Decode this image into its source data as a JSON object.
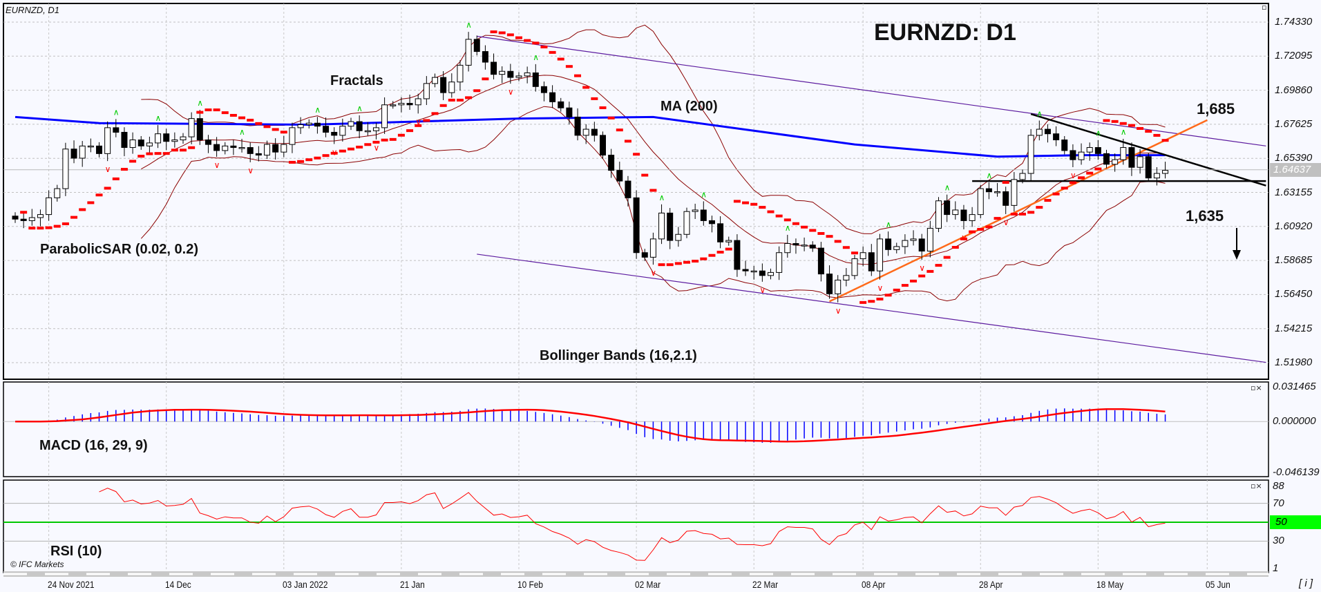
{
  "header": {
    "symbol_label": "EURNZD, D1",
    "big_title": "EURNZD: D1",
    "copyright": "© IFC Markets",
    "info_button": "[ i ]"
  },
  "annotations_text": {
    "parabolic_sar": "ParabolicSAR (0.02, 0.2)",
    "fractals": "Fractals",
    "ma": "MA (200)",
    "bollinger": "Bollinger Bands (16,2.1)",
    "macd": "MACD (16, 29, 9)",
    "rsi": "RSI (10)",
    "level_high": "1,685",
    "level_low": "1,635"
  },
  "price_axis": {
    "ticks": [
      "1.74330",
      "1.72095",
      "1.69860",
      "1.67625",
      "1.65390",
      "1.63155",
      "1.60920",
      "1.58685",
      "1.56450",
      "1.54215",
      "1.51980"
    ],
    "current_price": "1.64637"
  },
  "macd_axis": {
    "ticks": [
      "0.031465",
      "0.000000",
      "-0.046139"
    ]
  },
  "rsi_axis": {
    "ticks": [
      "88",
      "70",
      "50",
      "30",
      "1"
    ]
  },
  "time_axis": {
    "ticks": [
      {
        "label": "24 Nov 2021",
        "date": "2021-11-24"
      },
      {
        "label": "14 Dec",
        "date": "2021-12-14"
      },
      {
        "label": "03 Jan 2022",
        "date": "2022-01-03"
      },
      {
        "label": "21 Jan",
        "date": "2022-01-21"
      },
      {
        "label": "10 Feb",
        "date": "2022-02-10"
      },
      {
        "label": "02 Mar",
        "date": "2022-03-02"
      },
      {
        "label": "22 Mar",
        "date": "2022-03-22"
      },
      {
        "label": "08 Apr",
        "date": "2022-04-08"
      },
      {
        "label": "28 Apr",
        "date": "2022-04-28"
      },
      {
        "label": "18 May",
        "date": "2022-05-18"
      },
      {
        "label": "05 Jun",
        "date": "2022-06-06"
      }
    ]
  },
  "colors": {
    "bull": "#ffffff",
    "bear": "#000000",
    "ma": "#0000ff",
    "bollinger": "#8b0000",
    "sar": "#ff0000",
    "fractal_up": "#00cc00",
    "fractal_down": "#ff0000",
    "channel": "#5b1a9e",
    "support": "#ff6a1a",
    "resistance": "#000000",
    "macd_hist": "#0000ff",
    "macd_signal": "#ff0000",
    "rsi": "#ff0000",
    "rsi_mid": "#00c800"
  },
  "chart_data": {
    "type": "candlestick",
    "symbol": "EURNZD",
    "timeframe": "D1",
    "ylim": [
      1.5198,
      1.7433
    ],
    "trading_days": {
      "2021-11": [
        18,
        19,
        22,
        23,
        24,
        25,
        26,
        29,
        30
      ],
      "2021-12": [
        1,
        2,
        3,
        6,
        7,
        8,
        9,
        10,
        13,
        14,
        15,
        16,
        17,
        20,
        21,
        22,
        23,
        24,
        27,
        28,
        29,
        30,
        31
      ],
      "2022-01": [
        3,
        4,
        5,
        6,
        7,
        10,
        11,
        12,
        13,
        14,
        17,
        18,
        19,
        20,
        21,
        24,
        25,
        26,
        27,
        28,
        31
      ],
      "2022-02": [
        1,
        2,
        3,
        4,
        7,
        8,
        9,
        10,
        11,
        14,
        15,
        16,
        17,
        18,
        21,
        22,
        23,
        24,
        25,
        28
      ],
      "2022-03": [
        1,
        2,
        3,
        4,
        7,
        8,
        9,
        10,
        11,
        14,
        15,
        16,
        17,
        18,
        21,
        22,
        23,
        24,
        25,
        28,
        29,
        30,
        31
      ],
      "2022-04": [
        1,
        4,
        5,
        6,
        7,
        8,
        11,
        12,
        13,
        14,
        15,
        18,
        19,
        20,
        21,
        22,
        25,
        26,
        27,
        28,
        29
      ],
      "2022-05": [
        2,
        3,
        4,
        5,
        6,
        9,
        10,
        11,
        12,
        13,
        16,
        17,
        18,
        19,
        20,
        23,
        24,
        25,
        26,
        27,
        30
      ]
    },
    "first_open": 1.616,
    "close": [
      1.614,
      1.613,
      1.615,
      1.617,
      1.628,
      1.634,
      1.66,
      1.654,
      1.662,
      1.662,
      1.657,
      1.674,
      1.671,
      1.661,
      1.666,
      1.662,
      1.664,
      1.67,
      1.665,
      1.666,
      1.668,
      1.68,
      1.666,
      1.663,
      1.659,
      1.662,
      1.661,
      1.661,
      1.657,
      1.656,
      1.663,
      1.658,
      1.663,
      1.674,
      1.676,
      1.677,
      1.675,
      1.671,
      1.669,
      1.675,
      1.678,
      1.672,
      1.672,
      1.674,
      1.689,
      1.689,
      1.69,
      1.689,
      1.693,
      1.703,
      1.707,
      1.697,
      1.704,
      1.715,
      1.732,
      1.724,
      1.717,
      1.709,
      1.711,
      1.707,
      1.708,
      1.71,
      1.701,
      1.697,
      1.691,
      1.687,
      1.681,
      1.669,
      1.673,
      1.669,
      1.656,
      1.646,
      1.639,
      1.628,
      1.592,
      1.589,
      1.601,
      1.618,
      1.6,
      1.604,
      1.619,
      1.62,
      1.613,
      1.611,
      1.599,
      1.6,
      1.581,
      1.58,
      1.58,
      1.577,
      1.579,
      1.592,
      1.598,
      1.597,
      1.597,
      1.595,
      1.578,
      1.565,
      1.574,
      1.577,
      1.588,
      1.592,
      1.58,
      1.601,
      1.594,
      1.596,
      1.6,
      1.601,
      1.593,
      1.608,
      1.626,
      1.617,
      1.62,
      1.613,
      1.617,
      1.634,
      1.632,
      1.632,
      1.623,
      1.64,
      1.644,
      1.669,
      1.673,
      1.67,
      1.666,
      1.659,
      1.653,
      1.658,
      1.661,
      1.657,
      1.65,
      1.653,
      1.661,
      1.648,
      1.655,
      1.641,
      1.644,
      1.646
    ],
    "ma200": [
      {
        "date": "2021-11-18",
        "value": 1.681
      },
      {
        "date": "2021-12-02",
        "value": 1.677
      },
      {
        "date": "2022-01-06",
        "value": 1.676
      },
      {
        "date": "2022-02-10",
        "value": 1.68
      },
      {
        "date": "2022-03-04",
        "value": 1.681
      },
      {
        "date": "2022-04-07",
        "value": 1.663
      },
      {
        "date": "2022-05-02",
        "value": 1.655
      },
      {
        "date": "2022-05-16",
        "value": 1.656
      },
      {
        "date": "2022-05-30",
        "value": 1.656
      }
    ],
    "indicators": {
      "bollinger": {
        "period": 16,
        "deviation": 2.1
      },
      "parabolic_sar": {
        "step": 0.02,
        "max": 0.2
      },
      "macd": {
        "fast": 16,
        "slow": 29,
        "signal": 9
      },
      "rsi": {
        "period": 10,
        "levels": [
          70,
          50,
          30
        ]
      }
    },
    "macd_ylim": [
      -0.046139,
      0.031465
    ],
    "rsi_ylim": [
      1,
      88
    ],
    "trendlines": [
      {
        "kind": "channel-upper",
        "from": {
          "date": "2022-02-03",
          "price": 1.734
        },
        "to": {
          "date": "2022-06-15",
          "price": 1.662
        }
      },
      {
        "kind": "channel-lower",
        "from": {
          "date": "2022-02-03",
          "price": 1.591
        },
        "to": {
          "date": "2022-06-15",
          "price": 1.52
        }
      },
      {
        "kind": "support",
        "from": {
          "date": "2022-04-04",
          "price": 1.56
        },
        "to": {
          "date": "2022-06-06",
          "price": 1.679
        }
      },
      {
        "kind": "resistance",
        "from": {
          "date": "2022-05-06",
          "price": 1.683
        },
        "to": {
          "date": "2022-06-15",
          "price": 1.636
        }
      },
      {
        "kind": "horizontal",
        "from": {
          "date": "2022-04-27",
          "price": 1.639
        },
        "to": {
          "date": "2022-06-15",
          "price": 1.639
        }
      }
    ],
    "forecast_direction": "down"
  }
}
